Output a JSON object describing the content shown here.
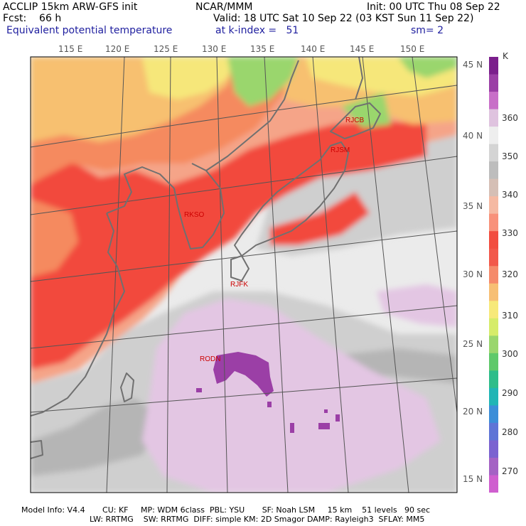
{
  "header": {
    "line1_left": "ACCLIP 15km ARW-GFS init",
    "line1_center": "NCAR/MMM",
    "line1_right": "Init: 00 UTC Thu 08 Sep 22",
    "line2_left": "Fcst:    66 h",
    "line2_right": "Valid: 18 UTC Sat 10 Sep 22 (03 KST Sun 11 Sep 22)",
    "line3_left": "Equivalent potential temperature",
    "line3_center": "at k-index =   51",
    "line3_right": "sm= 2"
  },
  "longitude_labels": [
    "115 E",
    "120 E",
    "125 E",
    "130 E",
    "135 E",
    "140 E",
    "145 E",
    "150 E"
  ],
  "latitude_labels": [
    "45 N",
    "40 N",
    "35 N",
    "30 N",
    "25 N",
    "20 N",
    "15 N"
  ],
  "stations": [
    {
      "id": "RJCB"
    },
    {
      "id": "RJSM"
    },
    {
      "id": "RKSO"
    },
    {
      "id": "RJFK"
    },
    {
      "id": "RODN"
    }
  ],
  "colorbar": {
    "unit": "K",
    "labels": [
      "360",
      "350",
      "340",
      "330",
      "320",
      "310",
      "300",
      "290",
      "280",
      "270"
    ],
    "colors": [
      "#7b1f8c",
      "#9b3fa6",
      "#c86fc8",
      "#dfc3df",
      "#eeeeee",
      "#d4d4d4",
      "#bdbdbd",
      "#d5bfb5",
      "#f5b9a2",
      "#f8917a",
      "#f24d3f",
      "#f2584a",
      "#f58a6a",
      "#f7bf74",
      "#f7e979",
      "#d6ec6a",
      "#9ad66d",
      "#5fc96a",
      "#2ebd8a",
      "#20b5b5",
      "#3b8ed8",
      "#5e74d6",
      "#7b62d0",
      "#a462c4",
      "#cf5fcf"
    ]
  },
  "map_colors": {
    "ocean_light": "#ebebeb",
    "grey": "#cfcfcf",
    "dark_grey": "#b5b5b5",
    "lavender": "#e3c6e3",
    "purple": "#9b3fa6",
    "salmon": "#f5a488",
    "red": "#f2483c",
    "orange": "#f58a5e",
    "yellow_orange": "#f7c070",
    "yellow": "#f6e77a",
    "green": "#9ad66d",
    "coast": "#707070",
    "grid": "#555555",
    "station": "#cc0000"
  },
  "footer": {
    "line1": "Model Info: V4.4       CU: KF     MP: WDM 6class  PBL: YSU       SF: Noah LSM     15 km    51 levels   90 sec",
    "line2": "LW: RRTMG    SW: RRTMG  DIFF: simple KM: 2D Smagor DAMP: Rayleigh3  SFLAY: MM5"
  }
}
